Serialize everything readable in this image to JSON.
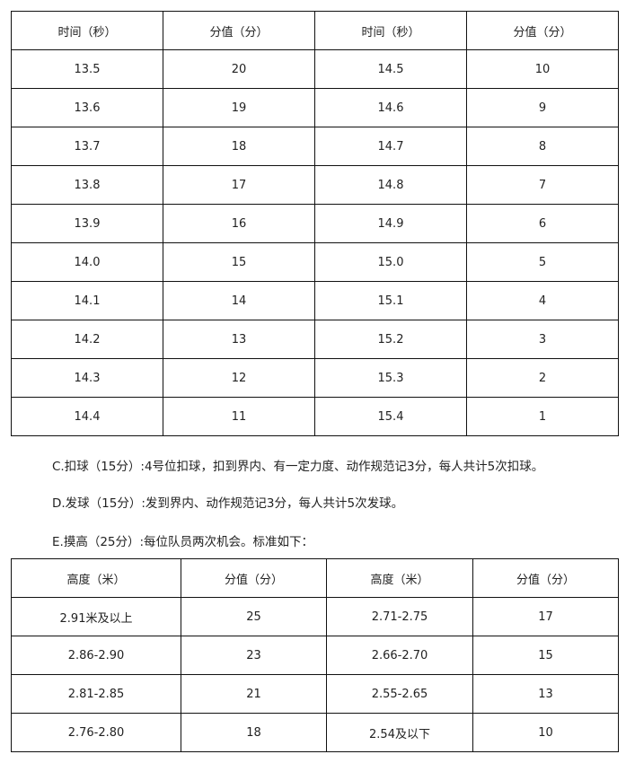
{
  "timing_table": {
    "headers": [
      "时间（秒）",
      "分值（分）",
      "时间（秒）",
      "分值（分）"
    ],
    "rows": [
      [
        "13.5",
        "20",
        "14.5",
        "10"
      ],
      [
        "13.6",
        "19",
        "14.6",
        "9"
      ],
      [
        "13.7",
        "18",
        "14.7",
        "8"
      ],
      [
        "13.8",
        "17",
        "14.8",
        "7"
      ],
      [
        "13.9",
        "16",
        "14.9",
        "6"
      ],
      [
        "14.0",
        "15",
        "15.0",
        "5"
      ],
      [
        "14.1",
        "14",
        "15.1",
        "4"
      ],
      [
        "14.2",
        "13",
        "15.2",
        "3"
      ],
      [
        "14.3",
        "12",
        "15.3",
        "2"
      ],
      [
        "14.4",
        "11",
        "15.4",
        "1"
      ]
    ]
  },
  "paragraphs": {
    "c": "C.扣球（15分）:4号位扣球，扣到界内、有一定力度、动作规范记3分，每人共计5次扣球。",
    "d": "D.发球（15分）:发到界内、动作规范记3分，每人共计5次发球。",
    "e": "E.摸高（25分）:每位队员两次机会。标准如下："
  },
  "height_table": {
    "headers": [
      "高度（米）",
      "分值（分）",
      "高度（米）",
      "分值（分）"
    ],
    "rows": [
      [
        "2.91米及以上",
        "25",
        "2.71-2.75",
        "17"
      ],
      [
        "2.86-2.90",
        "23",
        "2.66-2.70",
        "15"
      ],
      [
        "2.81-2.85",
        "21",
        "2.55-2.65",
        "13"
      ],
      [
        "2.76-2.80",
        "18",
        "2.54及以下",
        "10"
      ]
    ]
  }
}
